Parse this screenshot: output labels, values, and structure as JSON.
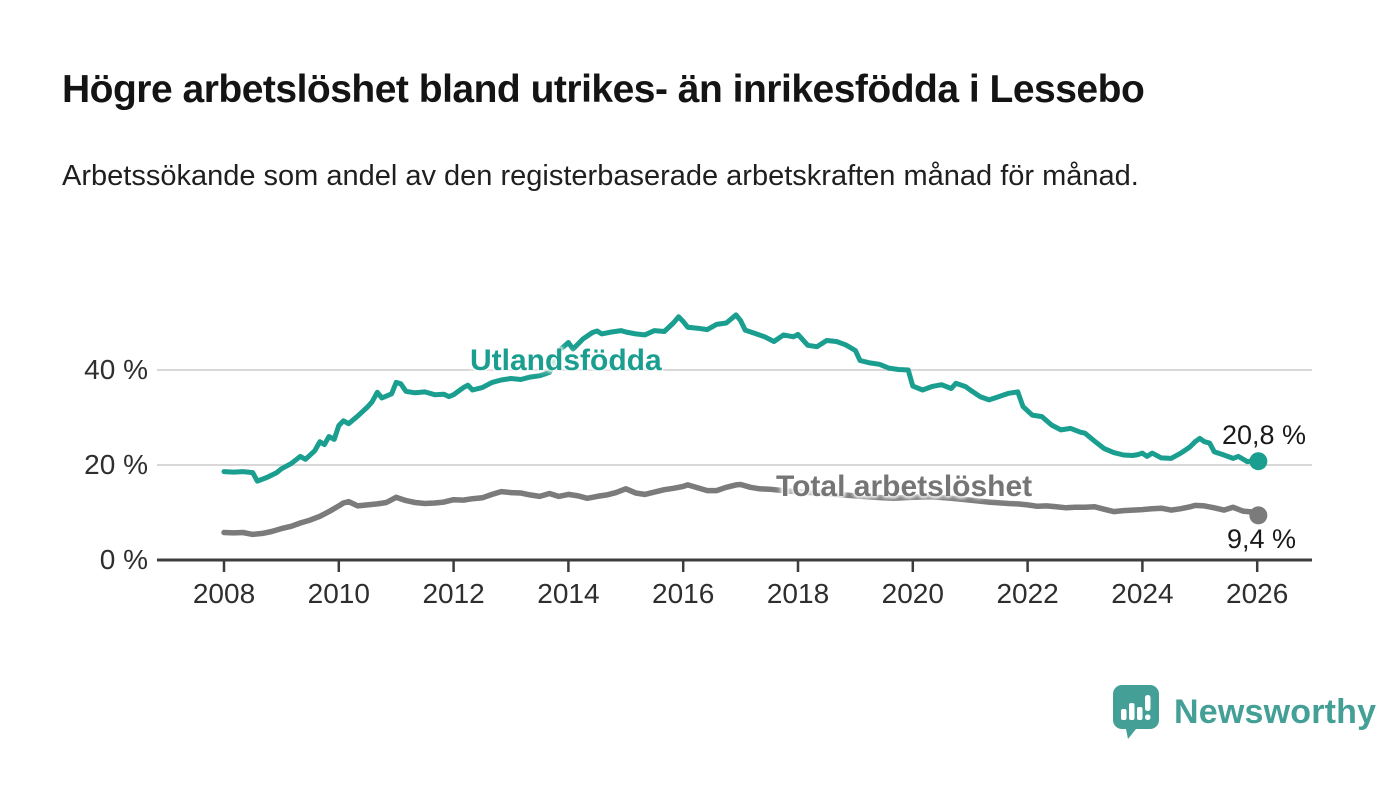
{
  "header": {
    "title": "Högre arbetslöshet bland utrikes- än inrikesfödda i Lessebo",
    "subtitle": "Arbetssökande som andel av den registerbaserade arbetskraften månad för månad."
  },
  "chart_data": {
    "type": "line",
    "title": "Högre arbetslöshet bland utrikes- än inrikesfödda i Lessebo",
    "subtitle": "Arbetssökande som andel av den registerbaserade arbetskraften månad för månad.",
    "grid": "horizontal",
    "legend_position": "inline-labels-on-lines",
    "x_axis": {
      "ticks": [
        2008,
        2010,
        2012,
        2014,
        2016,
        2018,
        2020,
        2022,
        2024,
        2026
      ],
      "tick_labels": [
        "2008",
        "2010",
        "2012",
        "2014",
        "2016",
        "2018",
        "2020",
        "2022",
        "2024",
        "2026"
      ],
      "range": [
        2006.8,
        2026.95
      ]
    },
    "y_axis": {
      "unit": "%",
      "ticks": [
        0,
        20,
        40
      ],
      "tick_labels": [
        "0 %",
        "20 %",
        "40 %"
      ],
      "range": [
        0,
        56.8
      ]
    },
    "colors": {
      "utlandsfodda": "#1a9e8f",
      "total": "#7b7b7b",
      "grid": "#d8d8d8",
      "axis": "#3d3d3d"
    },
    "series": [
      {
        "name": "Utlandsfödda",
        "color": "#1a9e8f",
        "line_width": 5,
        "end_value": 20.8,
        "end_label": "20,8 %",
        "points": [
          [
            2008.0,
            18.6
          ],
          [
            2008.17,
            18.5
          ],
          [
            2008.33,
            18.6
          ],
          [
            2008.5,
            18.4
          ],
          [
            2008.58,
            16.6
          ],
          [
            2008.75,
            17.4
          ],
          [
            2008.92,
            18.4
          ],
          [
            2009.0,
            19.2
          ],
          [
            2009.17,
            20.3
          ],
          [
            2009.33,
            21.8
          ],
          [
            2009.42,
            21.2
          ],
          [
            2009.58,
            23.0
          ],
          [
            2009.67,
            24.9
          ],
          [
            2009.75,
            24.3
          ],
          [
            2009.83,
            26.0
          ],
          [
            2009.92,
            25.4
          ],
          [
            2010.0,
            28.3
          ],
          [
            2010.08,
            29.3
          ],
          [
            2010.17,
            28.7
          ],
          [
            2010.33,
            30.3
          ],
          [
            2010.5,
            32.2
          ],
          [
            2010.58,
            33.3
          ],
          [
            2010.67,
            35.3
          ],
          [
            2010.75,
            34.1
          ],
          [
            2010.83,
            34.5
          ],
          [
            2010.92,
            35.0
          ],
          [
            2011.0,
            37.4
          ],
          [
            2011.08,
            37.1
          ],
          [
            2011.17,
            35.5
          ],
          [
            2011.33,
            35.2
          ],
          [
            2011.5,
            35.4
          ],
          [
            2011.67,
            34.8
          ],
          [
            2011.83,
            34.9
          ],
          [
            2011.92,
            34.4
          ],
          [
            2012.0,
            34.8
          ],
          [
            2012.17,
            36.3
          ],
          [
            2012.25,
            36.8
          ],
          [
            2012.33,
            35.8
          ],
          [
            2012.5,
            36.3
          ],
          [
            2012.67,
            37.4
          ],
          [
            2012.83,
            37.9
          ],
          [
            2013.0,
            38.2
          ],
          [
            2013.17,
            38.0
          ],
          [
            2013.33,
            38.5
          ],
          [
            2013.5,
            38.8
          ],
          [
            2013.67,
            39.5
          ],
          [
            2013.83,
            44.0
          ],
          [
            2014.0,
            45.8
          ],
          [
            2014.08,
            44.4
          ],
          [
            2014.25,
            46.5
          ],
          [
            2014.42,
            47.9
          ],
          [
            2014.5,
            48.2
          ],
          [
            2014.58,
            47.6
          ],
          [
            2014.75,
            48.0
          ],
          [
            2014.92,
            48.3
          ],
          [
            2015.0,
            48.0
          ],
          [
            2015.17,
            47.6
          ],
          [
            2015.33,
            47.4
          ],
          [
            2015.5,
            48.3
          ],
          [
            2015.67,
            48.1
          ],
          [
            2015.83,
            49.9
          ],
          [
            2015.92,
            51.2
          ],
          [
            2016.0,
            50.2
          ],
          [
            2016.08,
            49.0
          ],
          [
            2016.25,
            48.8
          ],
          [
            2016.42,
            48.5
          ],
          [
            2016.58,
            49.6
          ],
          [
            2016.75,
            49.9
          ],
          [
            2016.92,
            51.6
          ],
          [
            2017.0,
            50.4
          ],
          [
            2017.08,
            48.4
          ],
          [
            2017.25,
            47.7
          ],
          [
            2017.42,
            47.0
          ],
          [
            2017.58,
            46.0
          ],
          [
            2017.75,
            47.4
          ],
          [
            2017.92,
            47.0
          ],
          [
            2018.0,
            47.5
          ],
          [
            2018.17,
            45.2
          ],
          [
            2018.33,
            44.9
          ],
          [
            2018.5,
            46.2
          ],
          [
            2018.67,
            46.0
          ],
          [
            2018.83,
            45.3
          ],
          [
            2019.0,
            44.1
          ],
          [
            2019.08,
            42.0
          ],
          [
            2019.25,
            41.5
          ],
          [
            2019.42,
            41.2
          ],
          [
            2019.58,
            40.4
          ],
          [
            2019.75,
            40.1
          ],
          [
            2019.92,
            40.0
          ],
          [
            2020.0,
            36.6
          ],
          [
            2020.17,
            35.8
          ],
          [
            2020.33,
            36.5
          ],
          [
            2020.5,
            36.9
          ],
          [
            2020.67,
            36.1
          ],
          [
            2020.75,
            37.2
          ],
          [
            2020.92,
            36.5
          ],
          [
            2021.0,
            35.8
          ],
          [
            2021.17,
            34.4
          ],
          [
            2021.33,
            33.7
          ],
          [
            2021.5,
            34.4
          ],
          [
            2021.67,
            35.1
          ],
          [
            2021.83,
            35.4
          ],
          [
            2021.92,
            32.3
          ],
          [
            2022.08,
            30.5
          ],
          [
            2022.25,
            30.2
          ],
          [
            2022.42,
            28.4
          ],
          [
            2022.58,
            27.4
          ],
          [
            2022.75,
            27.7
          ],
          [
            2022.92,
            26.9
          ],
          [
            2023.0,
            26.7
          ],
          [
            2023.17,
            25.0
          ],
          [
            2023.33,
            23.5
          ],
          [
            2023.5,
            22.6
          ],
          [
            2023.67,
            22.1
          ],
          [
            2023.83,
            22.0
          ],
          [
            2023.92,
            22.2
          ],
          [
            2024.0,
            22.5
          ],
          [
            2024.08,
            21.8
          ],
          [
            2024.17,
            22.5
          ],
          [
            2024.33,
            21.5
          ],
          [
            2024.5,
            21.4
          ],
          [
            2024.67,
            22.5
          ],
          [
            2024.83,
            23.8
          ],
          [
            2024.92,
            24.9
          ],
          [
            2025.0,
            25.6
          ],
          [
            2025.08,
            24.9
          ],
          [
            2025.17,
            24.6
          ],
          [
            2025.25,
            22.8
          ],
          [
            2025.42,
            22.1
          ],
          [
            2025.58,
            21.4
          ],
          [
            2025.67,
            21.8
          ],
          [
            2025.83,
            20.7
          ],
          [
            2025.92,
            20.9
          ],
          [
            2026.02,
            20.8
          ]
        ]
      },
      {
        "name": "Total arbetslöshet",
        "color": "#7b7b7b",
        "line_width": 5.5,
        "end_value": 9.4,
        "end_label": "9,4 %",
        "points": [
          [
            2008.0,
            5.8
          ],
          [
            2008.17,
            5.7
          ],
          [
            2008.33,
            5.8
          ],
          [
            2008.5,
            5.4
          ],
          [
            2008.67,
            5.6
          ],
          [
            2008.83,
            6.0
          ],
          [
            2009.0,
            6.6
          ],
          [
            2009.17,
            7.1
          ],
          [
            2009.33,
            7.8
          ],
          [
            2009.5,
            8.4
          ],
          [
            2009.67,
            9.2
          ],
          [
            2009.83,
            10.2
          ],
          [
            2010.0,
            11.4
          ],
          [
            2010.08,
            12.0
          ],
          [
            2010.17,
            12.3
          ],
          [
            2010.33,
            11.4
          ],
          [
            2010.5,
            11.6
          ],
          [
            2010.67,
            11.8
          ],
          [
            2010.83,
            12.1
          ],
          [
            2011.0,
            13.2
          ],
          [
            2011.17,
            12.5
          ],
          [
            2011.33,
            12.1
          ],
          [
            2011.5,
            11.9
          ],
          [
            2011.67,
            12.0
          ],
          [
            2011.83,
            12.2
          ],
          [
            2012.0,
            12.7
          ],
          [
            2012.17,
            12.6
          ],
          [
            2012.33,
            12.9
          ],
          [
            2012.5,
            13.1
          ],
          [
            2012.67,
            13.8
          ],
          [
            2012.83,
            14.4
          ],
          [
            2013.0,
            14.2
          ],
          [
            2013.17,
            14.1
          ],
          [
            2013.33,
            13.7
          ],
          [
            2013.5,
            13.4
          ],
          [
            2013.67,
            14.0
          ],
          [
            2013.83,
            13.4
          ],
          [
            2014.0,
            13.8
          ],
          [
            2014.17,
            13.5
          ],
          [
            2014.33,
            13.0
          ],
          [
            2014.5,
            13.4
          ],
          [
            2014.67,
            13.7
          ],
          [
            2014.83,
            14.2
          ],
          [
            2015.0,
            15.0
          ],
          [
            2015.17,
            14.1
          ],
          [
            2015.33,
            13.8
          ],
          [
            2015.5,
            14.3
          ],
          [
            2015.67,
            14.8
          ],
          [
            2015.83,
            15.1
          ],
          [
            2016.0,
            15.5
          ],
          [
            2016.08,
            15.8
          ],
          [
            2016.25,
            15.2
          ],
          [
            2016.42,
            14.6
          ],
          [
            2016.58,
            14.6
          ],
          [
            2016.75,
            15.3
          ],
          [
            2016.92,
            15.8
          ],
          [
            2017.0,
            15.9
          ],
          [
            2017.17,
            15.3
          ],
          [
            2017.33,
            15.0
          ],
          [
            2017.5,
            14.9
          ],
          [
            2017.67,
            14.7
          ],
          [
            2017.83,
            14.5
          ],
          [
            2018.0,
            14.4
          ],
          [
            2018.33,
            14.1
          ],
          [
            2018.67,
            13.8
          ],
          [
            2019.0,
            13.5
          ],
          [
            2019.33,
            13.2
          ],
          [
            2019.67,
            13.0
          ],
          [
            2020.0,
            13.2
          ],
          [
            2020.33,
            13.3
          ],
          [
            2020.67,
            13.0
          ],
          [
            2021.0,
            12.6
          ],
          [
            2021.33,
            12.2
          ],
          [
            2021.67,
            11.9
          ],
          [
            2021.83,
            11.8
          ],
          [
            2022.0,
            11.6
          ],
          [
            2022.17,
            11.3
          ],
          [
            2022.33,
            11.4
          ],
          [
            2022.5,
            11.2
          ],
          [
            2022.67,
            11.0
          ],
          [
            2022.83,
            11.1
          ],
          [
            2023.0,
            11.1
          ],
          [
            2023.17,
            11.2
          ],
          [
            2023.33,
            10.7
          ],
          [
            2023.5,
            10.2
          ],
          [
            2023.67,
            10.4
          ],
          [
            2023.83,
            10.5
          ],
          [
            2024.0,
            10.6
          ],
          [
            2024.17,
            10.8
          ],
          [
            2024.33,
            10.9
          ],
          [
            2024.5,
            10.5
          ],
          [
            2024.67,
            10.8
          ],
          [
            2024.83,
            11.2
          ],
          [
            2024.92,
            11.5
          ],
          [
            2025.08,
            11.4
          ],
          [
            2025.25,
            11.0
          ],
          [
            2025.42,
            10.5
          ],
          [
            2025.58,
            11.1
          ],
          [
            2025.75,
            10.3
          ],
          [
            2025.92,
            10.1
          ],
          [
            2026.02,
            9.4
          ]
        ]
      }
    ]
  },
  "footer": {
    "brand": "Newsworthy",
    "brand_color": "#44a096",
    "logo_icon": "newsworthy-speech-bubble-barchart-icon"
  }
}
